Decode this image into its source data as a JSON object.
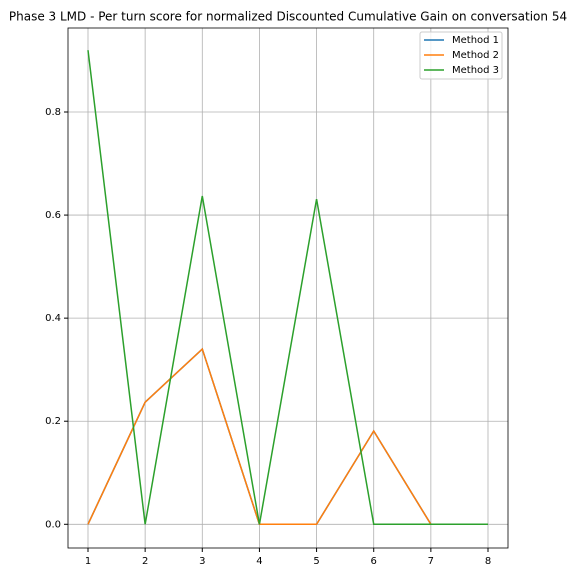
{
  "chart_data": {
    "type": "line",
    "title": "Phase 3 LMD - Per turn score for normalized Discounted Cumulative Gain on conversation 54",
    "x": [
      1,
      2,
      3,
      4,
      5,
      6,
      7,
      8
    ],
    "series": [
      {
        "name": "Method 1",
        "color": "#1f77b4",
        "values": [
          0,
          0.237,
          0.34,
          0,
          0,
          0.181,
          0,
          0
        ]
      },
      {
        "name": "Method 2",
        "color": "#ff7f0e",
        "values": [
          0,
          0.237,
          0.34,
          0,
          0,
          0.181,
          0,
          0
        ]
      },
      {
        "name": "Method 3",
        "color": "#2ca02c",
        "values": [
          0.92,
          0,
          0.637,
          0,
          0.631,
          0,
          0,
          0
        ]
      }
    ],
    "xlim": [
      0.65,
      8.35
    ],
    "xticks": [
      1,
      2,
      3,
      4,
      5,
      6,
      7,
      8
    ],
    "ylim": [
      -0.046,
      0.963
    ],
    "yticks": [
      {
        "value": 0,
        "label": "0.0"
      },
      0.2,
      0.4,
      0.6,
      0.8
    ],
    "grid": true,
    "legend": "upper right"
  }
}
